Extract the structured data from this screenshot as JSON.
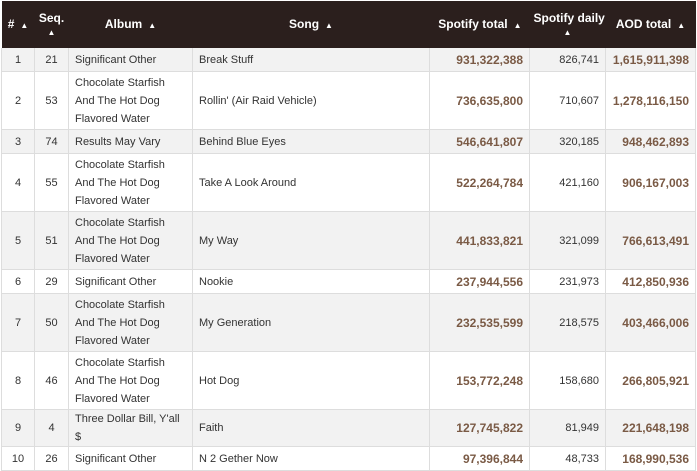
{
  "headers": {
    "idx": "#",
    "seq": "Seq.",
    "album": "Album",
    "song": "Song",
    "spotify_total": "Spotify total",
    "spotify_daily": "Spotify daily",
    "aod_total": "AOD total",
    "sort_icon": "▲"
  },
  "rows": [
    {
      "idx": "1",
      "seq": "21",
      "album": "Significant Other",
      "song": "Break Stuff",
      "spotify_total": "931,322,388",
      "spotify_daily": "826,741",
      "aod_total": "1,615,911,398"
    },
    {
      "idx": "2",
      "seq": "53",
      "album": "Chocolate Starfish And The Hot Dog Flavored Water",
      "song": "Rollin' (Air Raid Vehicle)",
      "spotify_total": "736,635,800",
      "spotify_daily": "710,607",
      "aod_total": "1,278,116,150"
    },
    {
      "idx": "3",
      "seq": "74",
      "album": "Results May Vary",
      "song": "Behind Blue Eyes",
      "spotify_total": "546,641,807",
      "spotify_daily": "320,185",
      "aod_total": "948,462,893"
    },
    {
      "idx": "4",
      "seq": "55",
      "album": "Chocolate Starfish And The Hot Dog Flavored Water",
      "song": "Take A Look Around",
      "spotify_total": "522,264,784",
      "spotify_daily": "421,160",
      "aod_total": "906,167,003"
    },
    {
      "idx": "5",
      "seq": "51",
      "album": "Chocolate Starfish And The Hot Dog Flavored Water",
      "song": "My Way",
      "spotify_total": "441,833,821",
      "spotify_daily": "321,099",
      "aod_total": "766,613,491"
    },
    {
      "idx": "6",
      "seq": "29",
      "album": "Significant Other",
      "song": "Nookie",
      "spotify_total": "237,944,556",
      "spotify_daily": "231,973",
      "aod_total": "412,850,936"
    },
    {
      "idx": "7",
      "seq": "50",
      "album": "Chocolate Starfish And The Hot Dog Flavored Water",
      "song": "My Generation",
      "spotify_total": "232,535,599",
      "spotify_daily": "218,575",
      "aod_total": "403,466,006"
    },
    {
      "idx": "8",
      "seq": "46",
      "album": "Chocolate Starfish And The Hot Dog Flavored Water",
      "song": "Hot Dog",
      "spotify_total": "153,772,248",
      "spotify_daily": "158,680",
      "aod_total": "266,805,921"
    },
    {
      "idx": "9",
      "seq": "4",
      "album": "Three Dollar Bill, Y'all $",
      "song": "Faith",
      "spotify_total": "127,745,822",
      "spotify_daily": "81,949",
      "aod_total": "221,648,198"
    },
    {
      "idx": "10",
      "seq": "26",
      "album": "Significant Other",
      "song": "N 2 Gether Now",
      "spotify_total": "97,396,844",
      "spotify_daily": "48,733",
      "aod_total": "168,990,536"
    }
  ]
}
